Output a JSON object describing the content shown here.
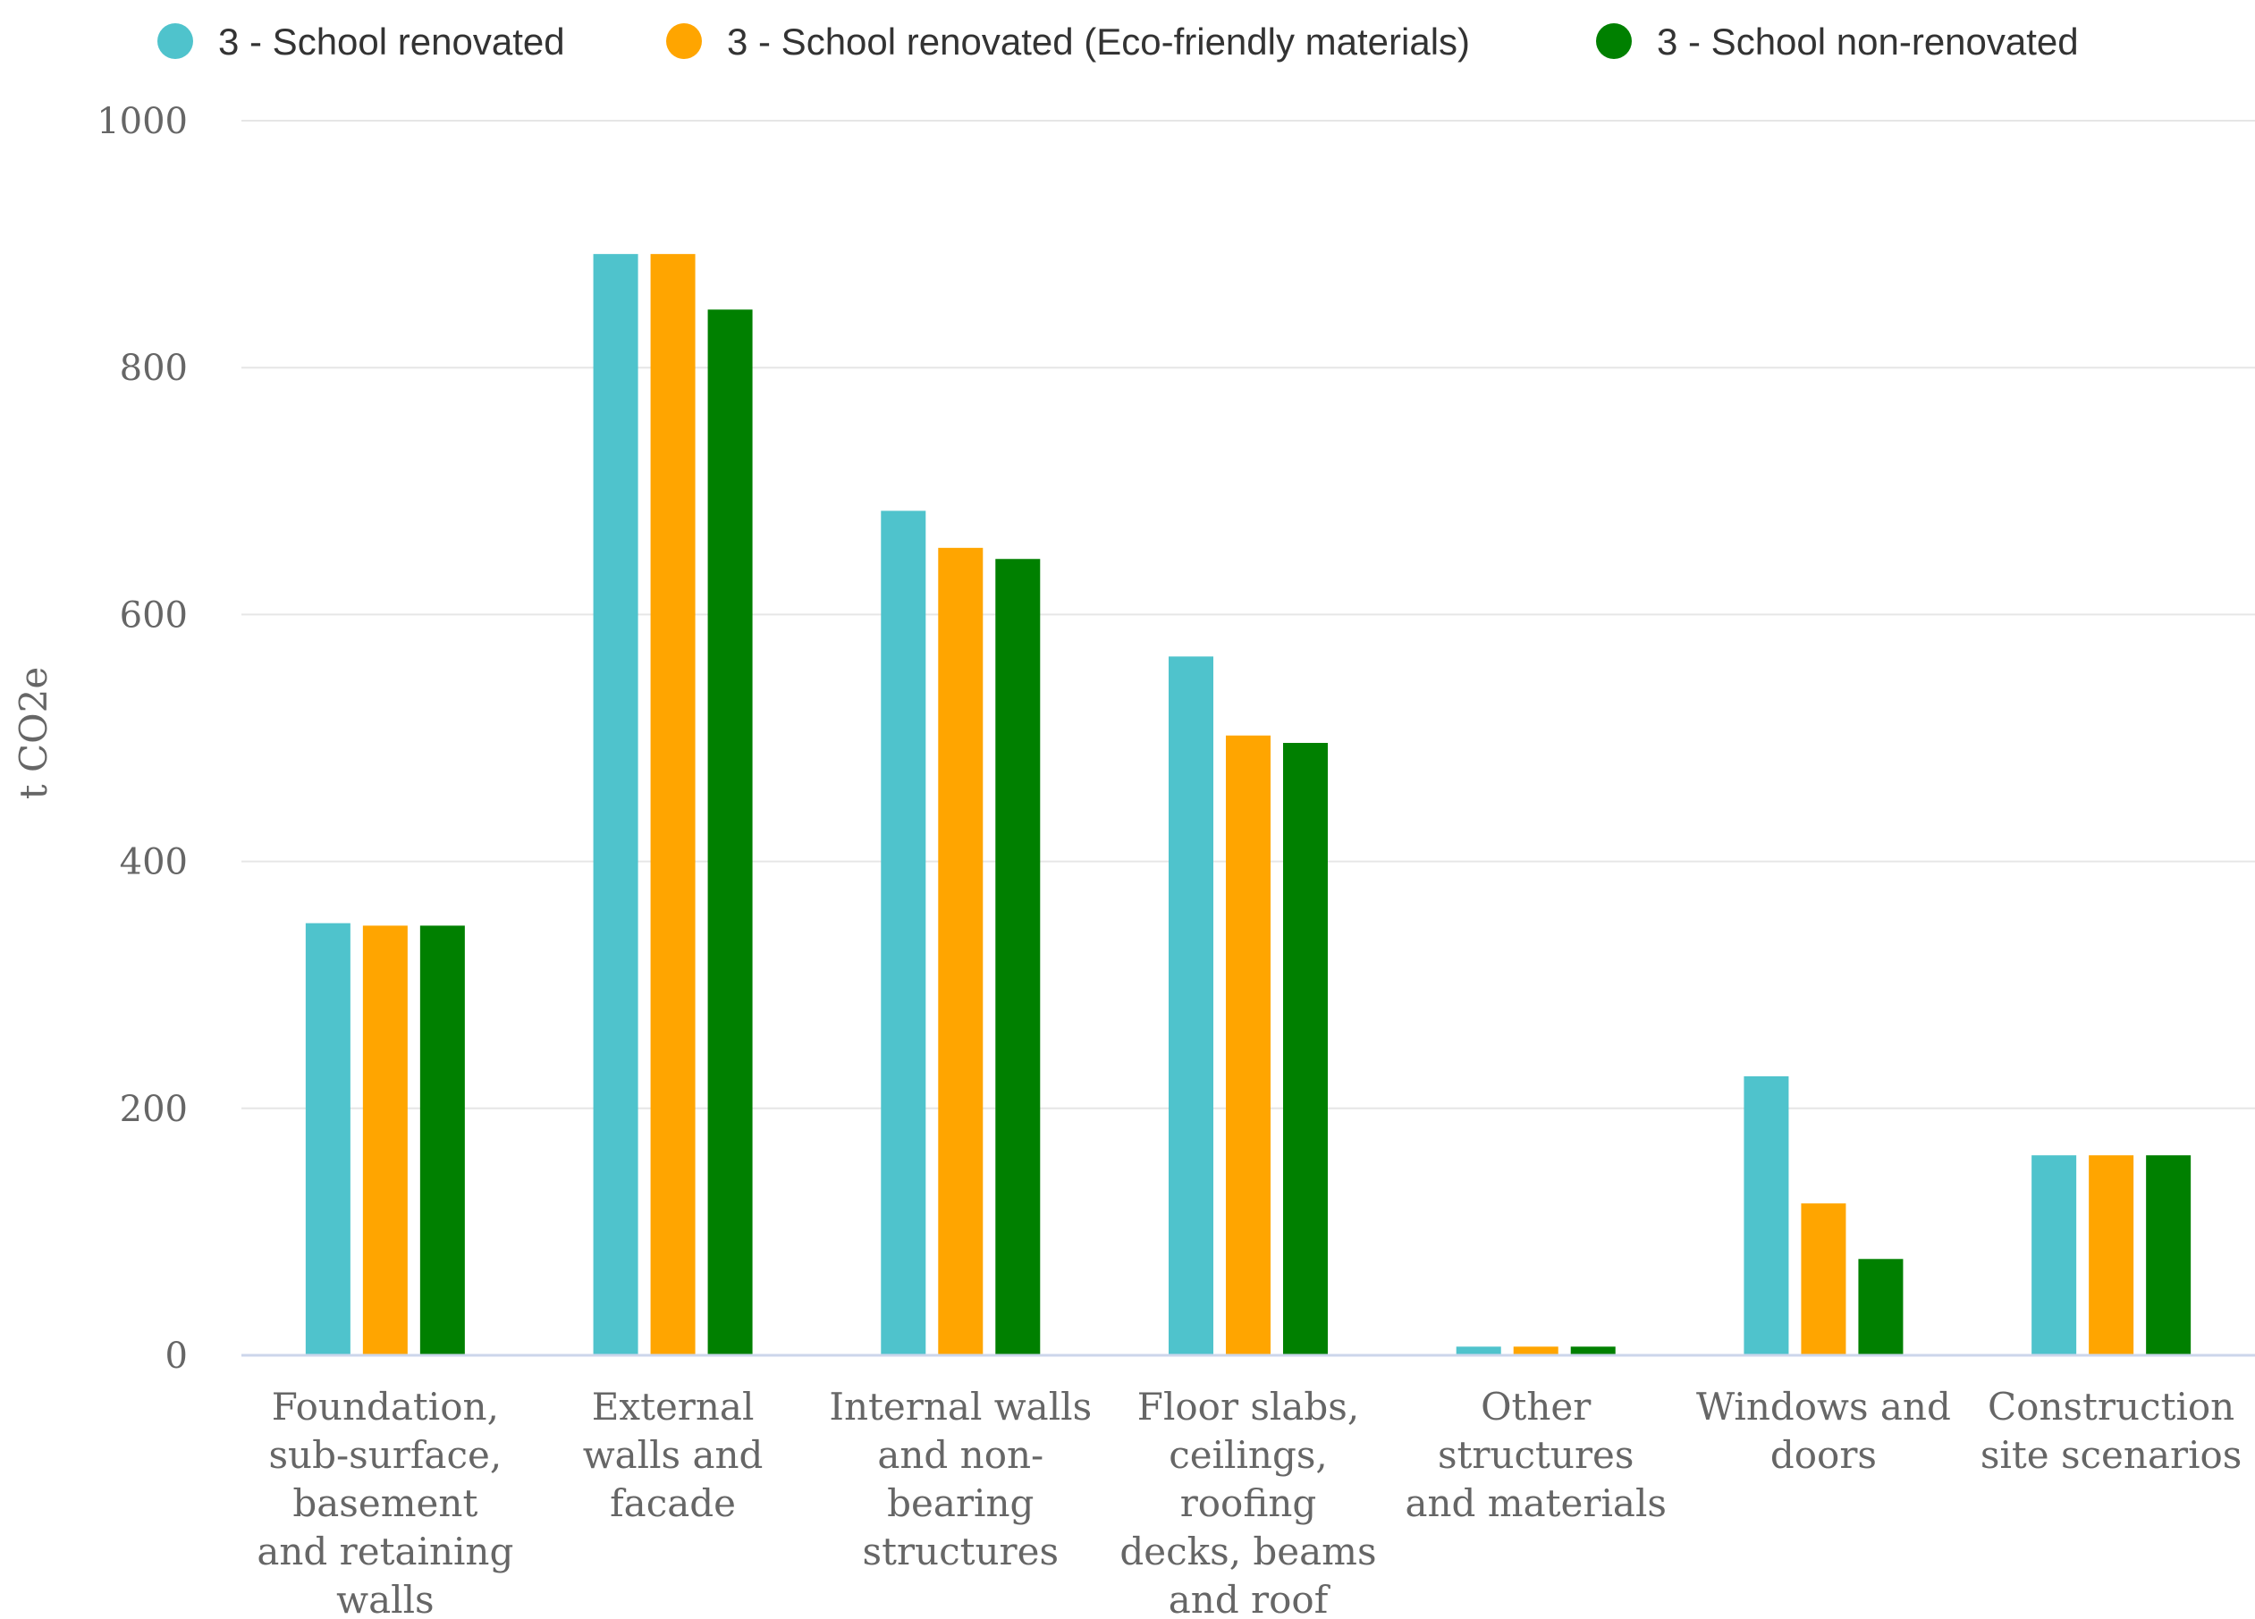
{
  "chart_data": {
    "type": "bar",
    "title": "",
    "xlabel": "",
    "ylabel": "t CO2e",
    "ylim": [
      0,
      1000
    ],
    "yticks": [
      0,
      200,
      400,
      600,
      800,
      1000
    ],
    "grid": true,
    "legend_position": "top",
    "categories": [
      [
        "Foundation,",
        "sub-surface,",
        "basement",
        "and retaining",
        "walls"
      ],
      [
        "External",
        "walls and",
        "facade"
      ],
      [
        "Internal walls",
        "and non-",
        "bearing",
        "structures"
      ],
      [
        "Floor slabs,",
        "ceilings,",
        "roofing",
        "decks, beams",
        "and roof"
      ],
      [
        "Other",
        "structures",
        "and materials"
      ],
      [
        "Windows and",
        "doors"
      ],
      [
        "Construction",
        "site scenarios"
      ]
    ],
    "series": [
      {
        "name": "3 - School renovated",
        "color": "#4fc3cc",
        "values": [
          350,
          892,
          684,
          566,
          7,
          226,
          162
        ]
      },
      {
        "name": "3 - School renovated (Eco-friendly materials)",
        "color": "#ffa500",
        "values": [
          348,
          892,
          654,
          502,
          7,
          123,
          162
        ]
      },
      {
        "name": "3 - School non-renovated",
        "color": "#008000",
        "values": [
          348,
          847,
          645,
          496,
          7,
          78,
          162
        ]
      }
    ]
  }
}
